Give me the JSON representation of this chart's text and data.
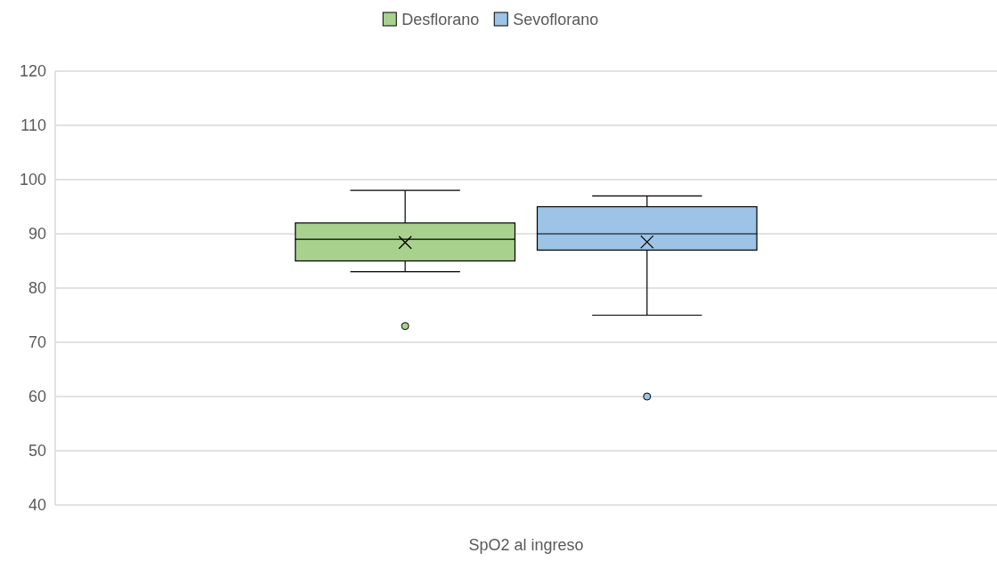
{
  "chart_data": {
    "type": "box",
    "categories": [
      "SpO2 al ingreso"
    ],
    "ylim": [
      40,
      120
    ],
    "yticks": [
      40,
      50,
      60,
      70,
      80,
      90,
      100,
      110,
      120
    ],
    "grid": "y",
    "legend": "top",
    "series": [
      {
        "name": "Desflorano",
        "color": "#a9d18e",
        "boxes": [
          {
            "low": 83,
            "q1": 85,
            "median": 89,
            "q3": 92,
            "high": 98,
            "mean": 88.4,
            "outliers": [
              73
            ]
          }
        ]
      },
      {
        "name": "Sevoflorano",
        "color": "#9dc3e6",
        "boxes": [
          {
            "low": 75,
            "q1": 87,
            "median": 90,
            "q3": 95,
            "high": 97,
            "mean": 88.5,
            "outliers": [
              60
            ]
          }
        ]
      }
    ]
  }
}
